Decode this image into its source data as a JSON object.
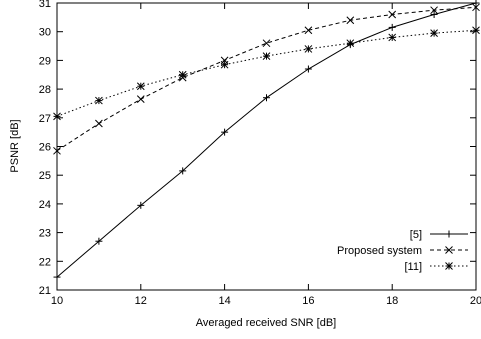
{
  "chart_data": {
    "type": "line",
    "title": "",
    "xlabel": "Averaged received SNR [dB]",
    "ylabel": "PSNR [dB]",
    "xlim": [
      10,
      20
    ],
    "ylim": [
      21,
      31
    ],
    "x_ticks": [
      "10",
      "12",
      "14",
      "16",
      "18",
      "20"
    ],
    "y_ticks": [
      "21",
      "22",
      "23",
      "24",
      "25",
      "26",
      "27",
      "28",
      "29",
      "30",
      "31"
    ],
    "x": [
      10,
      11,
      12,
      13,
      14,
      15,
      16,
      17,
      18,
      19,
      20
    ],
    "legend_position": "bottom-right",
    "series": [
      {
        "name": "[5]",
        "marker": "plus",
        "line": "solid",
        "values": [
          21.45,
          22.7,
          23.95,
          25.15,
          26.5,
          27.7,
          28.7,
          29.55,
          30.15,
          30.6,
          31.0
        ]
      },
      {
        "name": "Proposed system",
        "marker": "cross",
        "line": "dashed",
        "values": [
          25.85,
          26.8,
          27.65,
          28.4,
          29.0,
          29.6,
          30.05,
          30.4,
          30.6,
          30.75,
          30.85
        ]
      },
      {
        "name": "[11]",
        "marker": "star",
        "line": "dotted",
        "values": [
          27.05,
          27.6,
          28.1,
          28.5,
          28.85,
          29.15,
          29.4,
          29.6,
          29.8,
          29.95,
          30.05
        ]
      }
    ]
  }
}
